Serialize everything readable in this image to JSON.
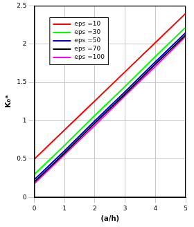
{
  "chart_data": {
    "type": "line",
    "x_label": "(a/h)",
    "y_label": "K₀ᵃ",
    "x": [
      0,
      1,
      2,
      3,
      4,
      5
    ],
    "series": [
      {
        "name": "eps =10",
        "color": "#ff0000",
        "values": [
          0.5,
          0.88,
          1.26,
          1.64,
          2.02,
          2.4
        ]
      },
      {
        "name": "eps =30",
        "color": "#00ff00",
        "values": [
          0.3,
          0.68,
          1.07,
          1.45,
          1.84,
          2.22
        ]
      },
      {
        "name": "eps =50",
        "color": "#0000cc",
        "values": [
          0.23,
          0.61,
          1.0,
          1.38,
          1.77,
          2.15
        ]
      },
      {
        "name": "eps =70",
        "color": "#000000",
        "values": [
          0.2,
          0.58,
          0.97,
          1.35,
          1.74,
          2.12
        ]
      },
      {
        "name": "eps =100",
        "color": "#ff00ff",
        "values": [
          0.18,
          0.56,
          0.94,
          1.33,
          1.71,
          2.1
        ]
      }
    ],
    "xlim": [
      0,
      5
    ],
    "xticks": [
      0,
      1,
      2,
      3,
      4,
      5
    ],
    "ylim": [
      0,
      2.5
    ],
    "yticks": [
      0,
      0.5,
      1,
      1.5,
      2,
      2.5
    ],
    "grid": true,
    "legend": "upper left"
  }
}
